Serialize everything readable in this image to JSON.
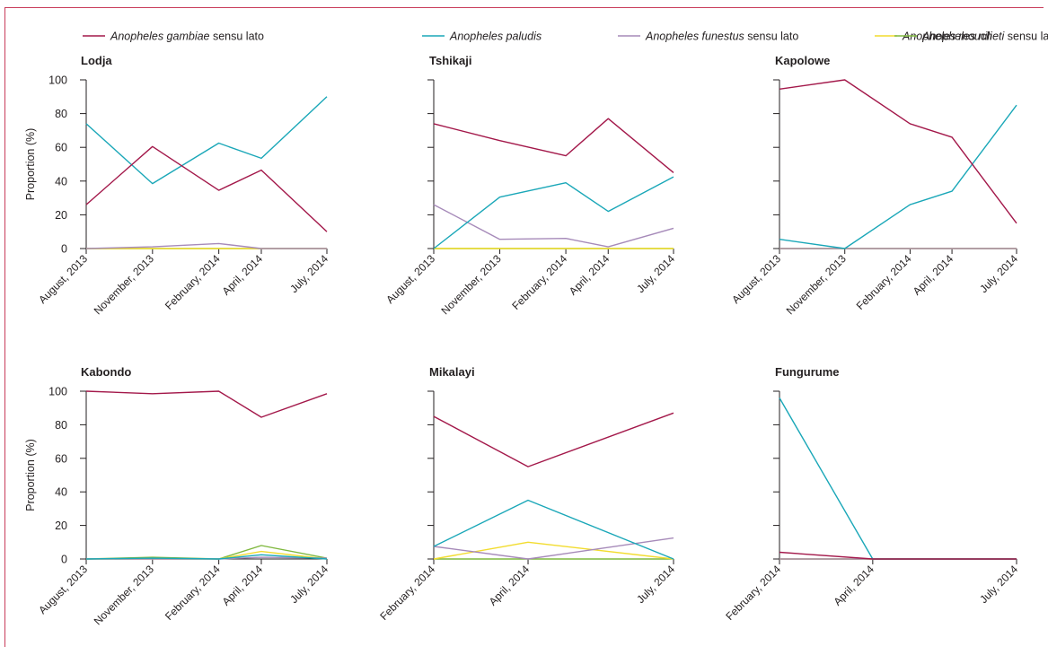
{
  "legend": [
    {
      "key": "gambiae",
      "italic": "Anopheles gambiae",
      "rest": " sensu lato",
      "color": "#a3184a"
    },
    {
      "key": "paludis",
      "italic": "Anopheles paludis",
      "rest": "",
      "color": "#1aa7b8"
    },
    {
      "key": "funestus",
      "italic": "Anopheles funestus",
      "rest": " sensu lato",
      "color": "#a68ab9"
    },
    {
      "key": "moucheti",
      "italic": "Anopheles moucheti",
      "rest": " sensu lato",
      "color": "#f2dc2e"
    },
    {
      "key": "nili",
      "italic": "Anopheles nili",
      "rest": "",
      "color": "#7fb83e"
    }
  ],
  "ylabel": "Proportion (%)",
  "y_ticks": [
    "0",
    "20",
    "40",
    "60",
    "80",
    "100"
  ],
  "chart_data": [
    {
      "title": "Lodja",
      "type": "line",
      "ylim": [
        0,
        100
      ],
      "x_dates": [
        "2013-08-01",
        "2013-11-01",
        "2014-02-01",
        "2014-04-01",
        "2014-07-01"
      ],
      "x_labels": [
        "August, 2013",
        "November, 2013",
        "February, 2014",
        "April, 2014",
        "July, 2014"
      ],
      "series": [
        {
          "key": "gambiae",
          "points": [
            [
              0,
              26
            ],
            [
              1,
              60.5
            ],
            [
              2,
              34.5
            ],
            [
              3,
              46.5
            ],
            [
              4,
              10
            ]
          ]
        },
        {
          "key": "paludis",
          "points": [
            [
              0,
              74
            ],
            [
              1,
              38.5
            ],
            [
              2,
              62.5
            ],
            [
              3,
              53.5
            ],
            [
              4,
              90
            ]
          ]
        },
        {
          "key": "funestus",
          "points": [
            [
              0,
              0
            ],
            [
              1,
              1
            ],
            [
              2,
              3
            ],
            [
              3,
              0
            ],
            [
              4,
              0
            ]
          ]
        },
        {
          "key": "moucheti",
          "points": [
            [
              0,
              0
            ],
            [
              1,
              0
            ],
            [
              2,
              0
            ],
            [
              3,
              0
            ],
            [
              4,
              0
            ]
          ]
        },
        {
          "key": "nili",
          "points": [
            [
              0,
              0
            ],
            [
              1,
              0
            ],
            [
              2,
              0
            ],
            [
              3,
              0
            ],
            [
              4,
              0
            ]
          ]
        }
      ]
    },
    {
      "title": "Tshikaji",
      "type": "line",
      "ylim": [
        0,
        100
      ],
      "x_dates": [
        "2013-08-01",
        "2013-11-01",
        "2014-02-01",
        "2014-04-01",
        "2014-07-01"
      ],
      "x_labels": [
        "August, 2013",
        "November, 2013",
        "February, 2014",
        "April, 2014",
        "July, 2014"
      ],
      "series": [
        {
          "key": "gambiae",
          "points": [
            [
              0,
              74
            ],
            [
              1,
              64
            ],
            [
              2,
              55
            ],
            [
              3,
              77
            ],
            [
              4,
              45
            ]
          ]
        },
        {
          "key": "paludis",
          "points": [
            [
              0,
              0
            ],
            [
              1,
              30.5
            ],
            [
              2,
              39
            ],
            [
              3,
              22
            ],
            [
              4,
              42.5
            ]
          ]
        },
        {
          "key": "funestus",
          "points": [
            [
              0,
              26
            ],
            [
              1,
              5.5
            ],
            [
              2,
              6
            ],
            [
              3,
              1
            ],
            [
              4,
              12
            ]
          ]
        },
        {
          "key": "moucheti",
          "points": [
            [
              0,
              0
            ],
            [
              1,
              0
            ],
            [
              2,
              0
            ],
            [
              3,
              0
            ],
            [
              4,
              0
            ]
          ]
        },
        {
          "key": "nili",
          "points": [
            [
              0,
              0
            ],
            [
              1,
              0
            ],
            [
              2,
              0
            ],
            [
              3,
              0
            ],
            [
              4,
              0
            ]
          ]
        }
      ]
    },
    {
      "title": "Kapolowe",
      "type": "line",
      "ylim": [
        0,
        100
      ],
      "x_dates": [
        "2013-08-01",
        "2013-11-01",
        "2014-02-01",
        "2014-04-01",
        "2014-07-01"
      ],
      "x_labels": [
        "August, 2013",
        "November, 2013",
        "February, 2014",
        "April, 2014",
        "July, 2014"
      ],
      "series": [
        {
          "key": "gambiae",
          "points": [
            [
              0,
              94.5
            ],
            [
              1,
              100
            ],
            [
              2,
              74
            ],
            [
              3,
              66
            ],
            [
              4,
              15
            ]
          ]
        },
        {
          "key": "paludis",
          "points": [
            [
              0,
              5.5
            ],
            [
              1,
              0
            ],
            [
              2,
              26
            ],
            [
              3,
              34
            ],
            [
              4,
              85
            ]
          ]
        },
        {
          "key": "funestus",
          "points": [
            [
              0,
              0
            ],
            [
              1,
              0
            ],
            [
              2,
              0
            ],
            [
              3,
              0
            ],
            [
              4,
              0
            ]
          ]
        },
        {
          "key": "moucheti",
          "points": [
            [
              0,
              0
            ],
            [
              1,
              0
            ],
            [
              2,
              0
            ],
            [
              3,
              0
            ],
            [
              4,
              0
            ]
          ]
        },
        {
          "key": "nili",
          "points": [
            [
              0,
              0
            ],
            [
              1,
              0
            ],
            [
              2,
              0
            ],
            [
              3,
              0
            ],
            [
              4,
              0
            ]
          ]
        }
      ]
    },
    {
      "title": "Kabondo",
      "type": "line",
      "ylim": [
        0,
        100
      ],
      "x_dates": [
        "2013-08-01",
        "2013-11-01",
        "2014-02-01",
        "2014-04-01",
        "2014-07-01"
      ],
      "x_labels": [
        "August, 2013",
        "November, 2013",
        "February, 2014",
        "April, 2014",
        "July, 2014"
      ],
      "series": [
        {
          "key": "gambiae",
          "points": [
            [
              0,
              100
            ],
            [
              1,
              98.5
            ],
            [
              2,
              100
            ],
            [
              3,
              84.5
            ],
            [
              4,
              98.5
            ]
          ]
        },
        {
          "key": "paludis",
          "points": [
            [
              0,
              0
            ],
            [
              1,
              0.5
            ],
            [
              2,
              0
            ],
            [
              3,
              2.5
            ],
            [
              4,
              0
            ]
          ]
        },
        {
          "key": "funestus",
          "points": [
            [
              0,
              0
            ],
            [
              1,
              0
            ],
            [
              2,
              0
            ],
            [
              3,
              1
            ],
            [
              4,
              0.5
            ]
          ]
        },
        {
          "key": "moucheti",
          "points": [
            [
              0,
              0
            ],
            [
              1,
              0
            ],
            [
              2,
              0
            ],
            [
              3,
              4.5
            ],
            [
              4,
              0
            ]
          ]
        },
        {
          "key": "nili",
          "points": [
            [
              0,
              0
            ],
            [
              1,
              1
            ],
            [
              2,
              0
            ],
            [
              3,
              8
            ],
            [
              4,
              0.5
            ]
          ]
        }
      ]
    },
    {
      "title": "Mikalayi",
      "type": "line",
      "ylim": [
        0,
        100
      ],
      "x_dates": [
        "2014-02-01",
        "2014-04-01",
        "2014-07-01"
      ],
      "x_labels": [
        "February, 2014",
        "April, 2014",
        "July, 2014"
      ],
      "series": [
        {
          "key": "gambiae",
          "points": [
            [
              0,
              85
            ],
            [
              1,
              55
            ],
            [
              2,
              87
            ]
          ]
        },
        {
          "key": "paludis",
          "points": [
            [
              0,
              7.5
            ],
            [
              1,
              35
            ],
            [
              2,
              0
            ]
          ]
        },
        {
          "key": "funestus",
          "points": [
            [
              0,
              7.5
            ],
            [
              1,
              0
            ],
            [
              2,
              12.5
            ]
          ]
        },
        {
          "key": "moucheti",
          "points": [
            [
              0,
              0
            ],
            [
              1,
              10
            ],
            [
              2,
              0
            ]
          ]
        },
        {
          "key": "nili",
          "points": [
            [
              0,
              0
            ],
            [
              1,
              0
            ],
            [
              2,
              0
            ]
          ]
        }
      ]
    },
    {
      "title": "Fungurume",
      "type": "line",
      "ylim": [
        0,
        100
      ],
      "x_dates": [
        "2014-02-01",
        "2014-04-01",
        "2014-07-01"
      ],
      "x_labels": [
        "February, 2014",
        "April, 2014",
        "July, 2014"
      ],
      "series": [
        {
          "key": "gambiae",
          "points": [
            [
              0,
              4
            ],
            [
              1,
              0
            ],
            [
              2,
              0
            ]
          ]
        },
        {
          "key": "paludis",
          "points": [
            [
              0,
              96
            ],
            [
              1,
              0
            ],
            [
              2,
              0
            ]
          ]
        },
        {
          "key": "funestus",
          "points": [
            [
              0,
              0
            ],
            [
              1,
              0
            ],
            [
              2,
              0
            ]
          ]
        },
        {
          "key": "moucheti",
          "points": [
            [
              0,
              0
            ],
            [
              1,
              0
            ],
            [
              2,
              0
            ]
          ]
        },
        {
          "key": "nili",
          "points": [
            [
              0,
              0
            ],
            [
              1,
              0
            ],
            [
              2,
              0
            ]
          ]
        }
      ]
    }
  ]
}
